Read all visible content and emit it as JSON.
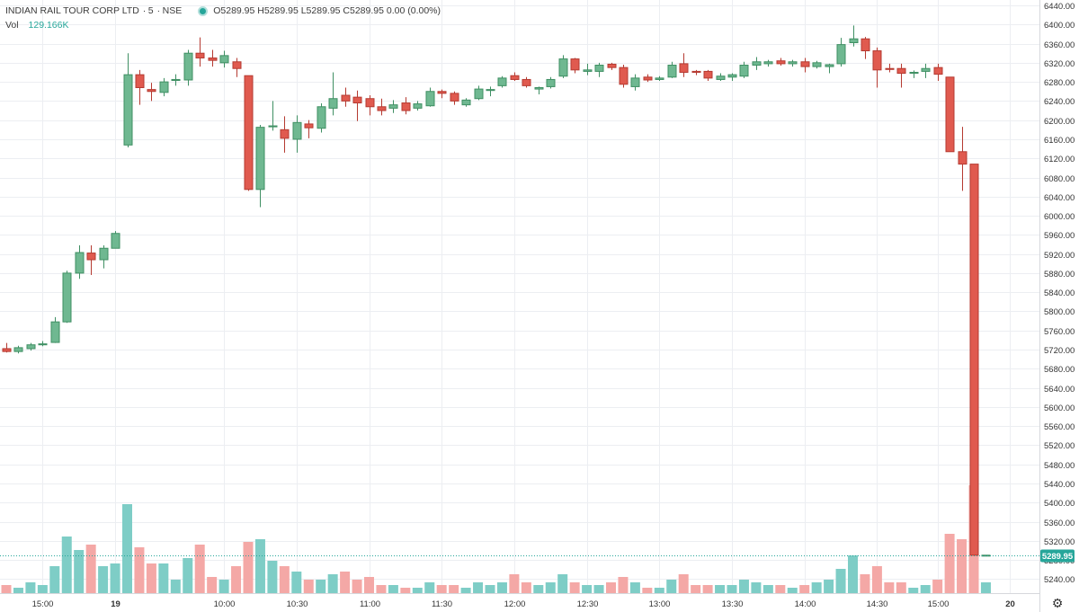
{
  "header": {
    "symbol": "INDIAN RAIL TOUR CORP LTD",
    "interval": "5",
    "exchange": "NSE",
    "ohlc_text": "O5289.95 H5289.95 L5289.95 C5289.95 0.00 (0.00%)"
  },
  "volume_legend": {
    "label": "Vol",
    "value": "129.166K"
  },
  "last_price_label": "5289.95",
  "colors": {
    "up": "#26a69a",
    "down": "#ef5350",
    "up_fill": "#6fb891",
    "down_fill": "#e05a4f",
    "up_volume": "#7ecdc6",
    "down_volume": "#f4a8a6",
    "grid": "#eceef2",
    "axis_text": "#333333",
    "price_tag": "#26a69a"
  },
  "icons": {
    "settings": "gear-icon"
  },
  "chart_data": {
    "type": "candlestick",
    "title": "",
    "price_axis": {
      "min": 5220,
      "max": 6440,
      "ticks": [
        6440,
        6400,
        6360,
        6320,
        6280,
        6240,
        6200,
        6160,
        6120,
        6080,
        6040,
        6000,
        5960,
        5920,
        5880,
        5840,
        5800,
        5760,
        5720,
        5680,
        5640,
        5600,
        5560,
        5520,
        5480,
        5440,
        5400,
        5360,
        5320,
        5280,
        5240
      ],
      "tick_labels": [
        "6440.00",
        "6400.00",
        "6360.00",
        "6320.00",
        "6280.00",
        "6240.00",
        "6200.00",
        "6160.00",
        "6120.00",
        "6080.00",
        "6040.00",
        "6000.00",
        "5960.00",
        "5920.00",
        "5880.00",
        "5840.00",
        "5800.00",
        "5760.00",
        "5720.00",
        "5680.00",
        "5640.00",
        "5600.00",
        "5560.00",
        "5520.00",
        "5480.00",
        "5440.00",
        "5400.00",
        "5360.00",
        "5320.00",
        "5280.00",
        "5240.00"
      ]
    },
    "time_axis": {
      "ticks": [
        {
          "label": "15:00",
          "bar": 3
        },
        {
          "label": "19",
          "bar": 9
        },
        {
          "label": "10:00",
          "bar": 18
        },
        {
          "label": "10:30",
          "bar": 24
        },
        {
          "label": "11:00",
          "bar": 30
        },
        {
          "label": "11:30",
          "bar": 36
        },
        {
          "label": "12:00",
          "bar": 42
        },
        {
          "label": "12:30",
          "bar": 48
        },
        {
          "label": "13:00",
          "bar": 54
        },
        {
          "label": "13:30",
          "bar": 60
        },
        {
          "label": "14:00",
          "bar": 66
        },
        {
          "label": "14:30",
          "bar": 72
        },
        {
          "label": "15:00",
          "bar": 77
        },
        {
          "label": "20",
          "bar": 83
        }
      ]
    },
    "volume_axis": {
      "max": 40
    },
    "last_price": 5289.95,
    "candles": [
      {
        "o": 5722,
        "h": 5734,
        "l": 5714,
        "c": 5716,
        "v": 3
      },
      {
        "o": 5716,
        "h": 5728,
        "l": 5712,
        "c": 5724,
        "v": 2
      },
      {
        "o": 5722,
        "h": 5734,
        "l": 5718,
        "c": 5730,
        "v": 4
      },
      {
        "o": 5730,
        "h": 5738,
        "l": 5727,
        "c": 5732,
        "v": 3
      },
      {
        "o": 5735,
        "h": 5788,
        "l": 5734,
        "c": 5778,
        "v": 10
      },
      {
        "o": 5778,
        "h": 5885,
        "l": 5776,
        "c": 5880,
        "v": 21
      },
      {
        "o": 5880,
        "h": 5938,
        "l": 5868,
        "c": 5923,
        "v": 16
      },
      {
        "o": 5922,
        "h": 5938,
        "l": 5876,
        "c": 5908,
        "v": 18
      },
      {
        "o": 5908,
        "h": 5938,
        "l": 5890,
        "c": 5932,
        "v": 10
      },
      {
        "o": 5932,
        "h": 5968,
        "l": 5932,
        "c": 5963,
        "v": 11
      },
      {
        "o": 6148,
        "h": 6340,
        "l": 6143,
        "c": 6295,
        "v": 33
      },
      {
        "o": 6295,
        "h": 6305,
        "l": 6232,
        "c": 6268,
        "v": 17
      },
      {
        "o": 6264,
        "h": 6278,
        "l": 6240,
        "c": 6260,
        "v": 11
      },
      {
        "o": 6258,
        "h": 6288,
        "l": 6250,
        "c": 6280,
        "v": 11
      },
      {
        "o": 6283,
        "h": 6296,
        "l": 6272,
        "c": 6285,
        "v": 5
      },
      {
        "o": 6284,
        "h": 6347,
        "l": 6272,
        "c": 6340,
        "v": 13
      },
      {
        "o": 6340,
        "h": 6373,
        "l": 6312,
        "c": 6330,
        "v": 18
      },
      {
        "o": 6330,
        "h": 6347,
        "l": 6312,
        "c": 6325,
        "v": 6
      },
      {
        "o": 6320,
        "h": 6345,
        "l": 6310,
        "c": 6335,
        "v": 5
      },
      {
        "o": 6322,
        "h": 6330,
        "l": 6290,
        "c": 6308,
        "v": 10
      },
      {
        "o": 6293,
        "h": 6293,
        "l": 6052,
        "c": 6055,
        "v": 19
      },
      {
        "o": 6055,
        "h": 6190,
        "l": 6018,
        "c": 6185,
        "v": 20
      },
      {
        "o": 6186,
        "h": 6240,
        "l": 6178,
        "c": 6188,
        "v": 12
      },
      {
        "o": 6180,
        "h": 6208,
        "l": 6132,
        "c": 6162,
        "v": 10
      },
      {
        "o": 6160,
        "h": 6210,
        "l": 6132,
        "c": 6195,
        "v": 8
      },
      {
        "o": 6192,
        "h": 6200,
        "l": 6162,
        "c": 6184,
        "v": 5
      },
      {
        "o": 6183,
        "h": 6235,
        "l": 6174,
        "c": 6228,
        "v": 5
      },
      {
        "o": 6225,
        "h": 6300,
        "l": 6210,
        "c": 6245,
        "v": 7
      },
      {
        "o": 6252,
        "h": 6268,
        "l": 6228,
        "c": 6240,
        "v": 8
      },
      {
        "o": 6248,
        "h": 6262,
        "l": 6198,
        "c": 6236,
        "v": 5
      },
      {
        "o": 6245,
        "h": 6252,
        "l": 6210,
        "c": 6228,
        "v": 6
      },
      {
        "o": 6228,
        "h": 6245,
        "l": 6210,
        "c": 6220,
        "v": 3
      },
      {
        "o": 6225,
        "h": 6242,
        "l": 6215,
        "c": 6232,
        "v": 3
      },
      {
        "o": 6236,
        "h": 6248,
        "l": 6212,
        "c": 6220,
        "v": 2
      },
      {
        "o": 6225,
        "h": 6240,
        "l": 6220,
        "c": 6234,
        "v": 2
      },
      {
        "o": 6230,
        "h": 6268,
        "l": 6228,
        "c": 6260,
        "v": 4
      },
      {
        "o": 6260,
        "h": 6264,
        "l": 6246,
        "c": 6256,
        "v": 3
      },
      {
        "o": 6256,
        "h": 6260,
        "l": 6232,
        "c": 6240,
        "v": 3
      },
      {
        "o": 6232,
        "h": 6246,
        "l": 6228,
        "c": 6242,
        "v": 2
      },
      {
        "o": 6245,
        "h": 6272,
        "l": 6242,
        "c": 6265,
        "v": 4
      },
      {
        "o": 6262,
        "h": 6270,
        "l": 6250,
        "c": 6264,
        "v": 3
      },
      {
        "o": 6272,
        "h": 6292,
        "l": 6268,
        "c": 6288,
        "v": 4
      },
      {
        "o": 6293,
        "h": 6300,
        "l": 6282,
        "c": 6285,
        "v": 7
      },
      {
        "o": 6285,
        "h": 6290,
        "l": 6268,
        "c": 6272,
        "v": 4
      },
      {
        "o": 6265,
        "h": 6270,
        "l": 6254,
        "c": 6268,
        "v": 3
      },
      {
        "o": 6270,
        "h": 6290,
        "l": 6266,
        "c": 6285,
        "v": 4
      },
      {
        "o": 6292,
        "h": 6336,
        "l": 6288,
        "c": 6328,
        "v": 7
      },
      {
        "o": 6328,
        "h": 6330,
        "l": 6298,
        "c": 6305,
        "v": 4
      },
      {
        "o": 6302,
        "h": 6318,
        "l": 6294,
        "c": 6305,
        "v": 3
      },
      {
        "o": 6302,
        "h": 6320,
        "l": 6290,
        "c": 6315,
        "v": 3
      },
      {
        "o": 6317,
        "h": 6320,
        "l": 6305,
        "c": 6310,
        "v": 4
      },
      {
        "o": 6310,
        "h": 6316,
        "l": 6268,
        "c": 6275,
        "v": 6
      },
      {
        "o": 6270,
        "h": 6296,
        "l": 6262,
        "c": 6288,
        "v": 4
      },
      {
        "o": 6290,
        "h": 6296,
        "l": 6280,
        "c": 6284,
        "v": 2
      },
      {
        "o": 6285,
        "h": 6292,
        "l": 6282,
        "c": 6288,
        "v": 2
      },
      {
        "o": 6290,
        "h": 6322,
        "l": 6288,
        "c": 6315,
        "v": 5
      },
      {
        "o": 6318,
        "h": 6340,
        "l": 6290,
        "c": 6300,
        "v": 7
      },
      {
        "o": 6302,
        "h": 6305,
        "l": 6294,
        "c": 6300,
        "v": 3
      },
      {
        "o": 6302,
        "h": 6305,
        "l": 6282,
        "c": 6288,
        "v": 3
      },
      {
        "o": 6285,
        "h": 6298,
        "l": 6282,
        "c": 6292,
        "v": 3
      },
      {
        "o": 6290,
        "h": 6298,
        "l": 6282,
        "c": 6295,
        "v": 3
      },
      {
        "o": 6292,
        "h": 6322,
        "l": 6288,
        "c": 6315,
        "v": 5
      },
      {
        "o": 6315,
        "h": 6332,
        "l": 6305,
        "c": 6322,
        "v": 4
      },
      {
        "o": 6318,
        "h": 6326,
        "l": 6312,
        "c": 6322,
        "v": 3
      },
      {
        "o": 6324,
        "h": 6330,
        "l": 6314,
        "c": 6318,
        "v": 3
      },
      {
        "o": 6318,
        "h": 6326,
        "l": 6312,
        "c": 6322,
        "v": 2
      },
      {
        "o": 6322,
        "h": 6330,
        "l": 6300,
        "c": 6312,
        "v": 3
      },
      {
        "o": 6312,
        "h": 6324,
        "l": 6308,
        "c": 6320,
        "v": 4
      },
      {
        "o": 6312,
        "h": 6318,
        "l": 6298,
        "c": 6316,
        "v": 5
      },
      {
        "o": 6318,
        "h": 6372,
        "l": 6312,
        "c": 6358,
        "v": 9
      },
      {
        "o": 6362,
        "h": 6398,
        "l": 6354,
        "c": 6370,
        "v": 14
      },
      {
        "o": 6370,
        "h": 6374,
        "l": 6328,
        "c": 6345,
        "v": 7
      },
      {
        "o": 6345,
        "h": 6352,
        "l": 6268,
        "c": 6305,
        "v": 10
      },
      {
        "o": 6308,
        "h": 6318,
        "l": 6300,
        "c": 6306,
        "v": 4
      },
      {
        "o": 6308,
        "h": 6318,
        "l": 6268,
        "c": 6298,
        "v": 4
      },
      {
        "o": 6298,
        "h": 6304,
        "l": 6288,
        "c": 6300,
        "v": 2
      },
      {
        "o": 6302,
        "h": 6318,
        "l": 6288,
        "c": 6308,
        "v": 3
      },
      {
        "o": 6310,
        "h": 6318,
        "l": 6282,
        "c": 6296,
        "v": 5
      },
      {
        "o": 6290,
        "h": 6290,
        "l": 6134,
        "c": 6134,
        "v": 22
      },
      {
        "o": 6134,
        "h": 6186,
        "l": 6052,
        "c": 6108,
        "v": 20
      },
      {
        "o": 6108,
        "h": 6108,
        "l": 5289.95,
        "c": 5289.95,
        "v": 40
      },
      {
        "o": 5289.95,
        "h": 5289.95,
        "l": 5289.95,
        "c": 5289.95,
        "v": 4
      }
    ]
  }
}
